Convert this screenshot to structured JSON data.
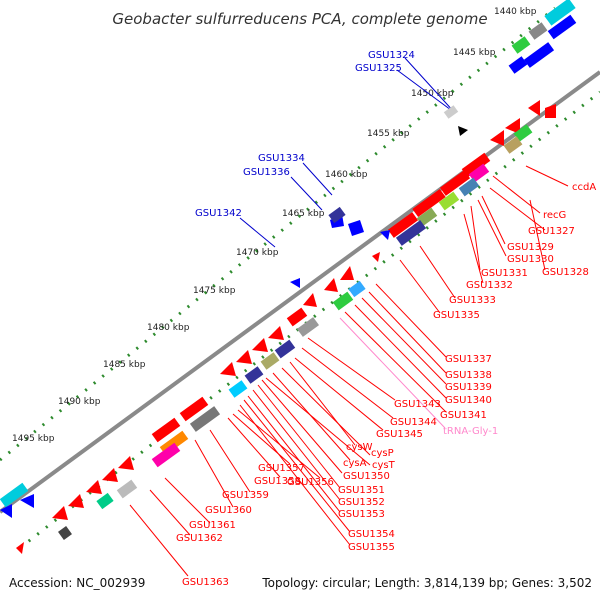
{
  "title": "Geobacter sulfurreducens PCA, complete genome",
  "footer": {
    "accession": "Accession: NC_002939",
    "summary": "Topology: circular; Length: 3,814,139 bp; Genes: 3,502"
  },
  "colors": {
    "forward_gene": "#ff0000",
    "reverse_gene": "#0000ff",
    "backbone": "#808080",
    "tick_dots": "#2e8b2e",
    "upper_labels": "#0000cc",
    "lower_labels": "#ff0000",
    "rna_label": "#ff88cc"
  },
  "scale_labels": [
    "1440 kbp",
    "1445 kbp",
    "1450 kbp",
    "1455 kbp",
    "1460 kbp",
    "1465 kbp",
    "1470 kbp",
    "1475 kbp",
    "1480 kbp",
    "1485 kbp",
    "1490 kbp",
    "1495 kbp"
  ],
  "upper_gene_labels": [
    "GSU1324",
    "GSU1325",
    "GSU1334",
    "GSU1336",
    "GSU1342"
  ],
  "lower_gene_labels": [
    "ccdA",
    "recG",
    "GSU1327",
    "GSU1329",
    "GSU1330",
    "GSU1328",
    "GSU1331",
    "GSU1332",
    "GSU1333",
    "GSU1335",
    "GSU1337",
    "GSU1338",
    "GSU1339",
    "GSU1340",
    "GSU1341",
    "GSU1343",
    "GSU1344",
    "GSU1345",
    "cysW",
    "cysP",
    "cysA",
    "cysT",
    "GSU1350",
    "GSU1351",
    "GSU1352",
    "GSU1353",
    "GSU1354",
    "GSU1355",
    "GSU1356",
    "GSU1357",
    "GSU1358",
    "GSU1359",
    "GSU1360",
    "GSU1361",
    "GSU1362",
    "GSU1363"
  ],
  "rna_labels": [
    "tRNA-Gly-1"
  ]
}
